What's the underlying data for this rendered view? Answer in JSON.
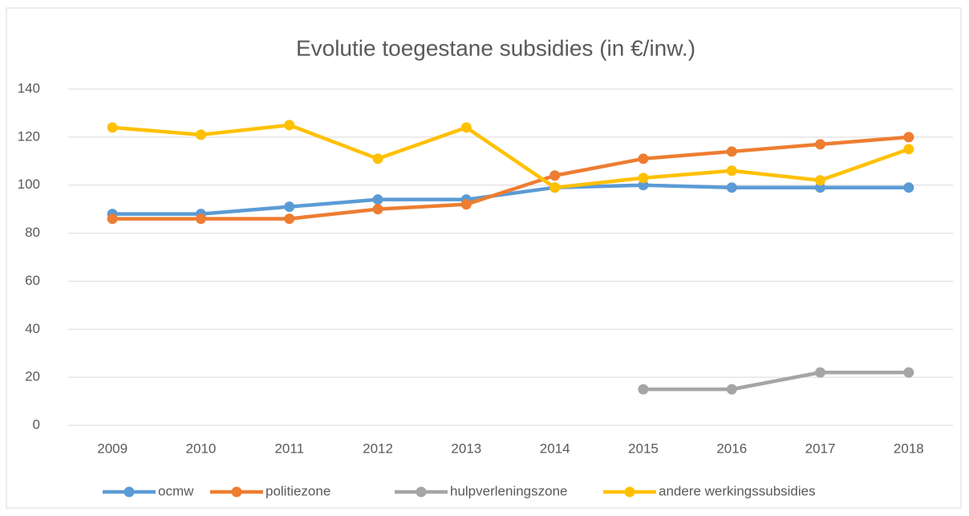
{
  "chart_data": {
    "type": "line",
    "title": "Evolutie toegestane subsidies (in €/inw.)",
    "categories": [
      "2009",
      "2010",
      "2011",
      "2012",
      "2013",
      "2014",
      "2015",
      "2016",
      "2017",
      "2018"
    ],
    "series": [
      {
        "name": "ocmw",
        "color": "#5b9bd5",
        "values": [
          88,
          88,
          91,
          94,
          94,
          99,
          100,
          99,
          99,
          99
        ]
      },
      {
        "name": "politiezone",
        "color": "#ed7d31",
        "values": [
          86,
          86,
          86,
          90,
          92,
          104,
          111,
          114,
          117,
          120
        ]
      },
      {
        "name": "hulpverleningszone",
        "color": "#a5a5a5",
        "values": [
          null,
          null,
          null,
          null,
          null,
          null,
          15,
          15,
          22,
          22
        ]
      },
      {
        "name": "andere werkingssubsidies",
        "color": "#ffc000",
        "values": [
          124,
          121,
          125,
          111,
          124,
          99,
          103,
          106,
          102,
          115
        ]
      }
    ],
    "ylim": [
      0,
      140
    ],
    "yticks": [
      0,
      20,
      40,
      60,
      80,
      100,
      120,
      140
    ],
    "grid": true,
    "legend": "bottom"
  }
}
